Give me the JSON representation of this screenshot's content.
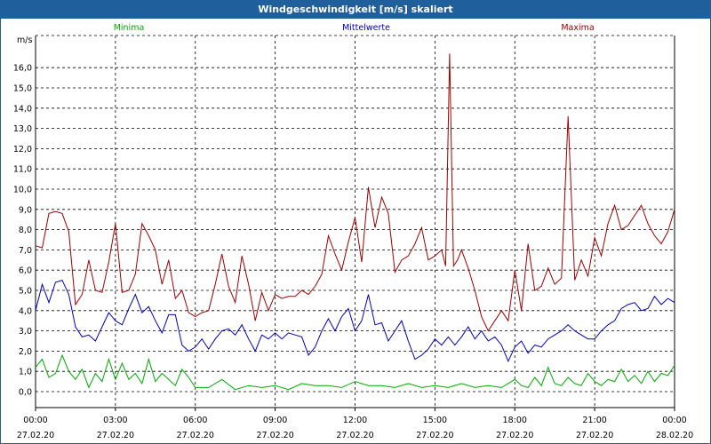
{
  "window": {
    "title": "Windgeschwindigkeit [m/s] skaliert"
  },
  "chart_data": {
    "type": "line",
    "title": "Windgeschwindigkeit [m/s] skaliert",
    "ylabel": "m/s",
    "xlabel": "",
    "ylim": [
      -0.8,
      17.3
    ],
    "y_ticks": [
      "0,0",
      "1,0",
      "2,0",
      "3,0",
      "4,0",
      "5,0",
      "6,0",
      "7,0",
      "8,0",
      "9,0",
      "10,0",
      "11,0",
      "12,0",
      "13,0",
      "14,0",
      "15,0",
      "16,0"
    ],
    "x_ticks": [
      {
        "time": "00:00",
        "date": "27.02.20"
      },
      {
        "time": "03:00",
        "date": "27.02.20"
      },
      {
        "time": "06:00",
        "date": "27.02.20"
      },
      {
        "time": "09:00",
        "date": "27.02.20"
      },
      {
        "time": "12:00",
        "date": "27.02.20"
      },
      {
        "time": "15:00",
        "date": "27.02.20"
      },
      {
        "time": "18:00",
        "date": "27.02.20"
      },
      {
        "time": "21:00",
        "date": "27.02.20"
      },
      {
        "time": "00:00",
        "date": "28.02.20"
      }
    ],
    "grid": true,
    "legend_position": "top",
    "x_unit": "hours",
    "series": [
      {
        "name": "Minima",
        "color": "#00aa00",
        "x": [
          0,
          0.25,
          0.5,
          0.75,
          1,
          1.25,
          1.5,
          1.75,
          2,
          2.25,
          2.5,
          2.75,
          3,
          3.25,
          3.5,
          3.75,
          4,
          4.25,
          4.5,
          4.75,
          5,
          5.25,
          5.5,
          5.75,
          6,
          6.5,
          7,
          7.5,
          8,
          8.5,
          9,
          9.5,
          10,
          10.5,
          11,
          11.5,
          12,
          12.5,
          13,
          13.5,
          14,
          14.5,
          15,
          15.5,
          16,
          16.5,
          17,
          17.5,
          18,
          18.25,
          18.5,
          18.75,
          19,
          19.25,
          19.5,
          19.75,
          20,
          20.25,
          20.5,
          20.75,
          21,
          21.25,
          21.5,
          21.75,
          22,
          22.25,
          22.5,
          22.75,
          23,
          23.25,
          23.5,
          23.75,
          24
        ],
        "values": [
          1.2,
          1.6,
          0.7,
          0.9,
          1.8,
          1.0,
          0.6,
          1.1,
          0.2,
          0.9,
          0.5,
          1.6,
          0.6,
          1.4,
          0.6,
          0.9,
          0.4,
          1.6,
          0.5,
          0.9,
          0.6,
          0.3,
          1.1,
          0.7,
          0.2,
          0.2,
          0.6,
          0.1,
          0.3,
          0.2,
          0.3,
          0.1,
          0.4,
          0.3,
          0.3,
          0.2,
          0.5,
          0.3,
          0.3,
          0.2,
          0.4,
          0.2,
          0.3,
          0.2,
          0.4,
          0.2,
          0.3,
          0.2,
          0.6,
          0.3,
          0.2,
          0.7,
          0.3,
          1.2,
          0.4,
          0.3,
          0.7,
          0.4,
          0.3,
          0.9,
          0.5,
          0.3,
          0.6,
          0.5,
          1.1,
          0.5,
          0.8,
          0.4,
          1.0,
          0.5,
          0.9,
          0.8,
          1.3
        ]
      },
      {
        "name": "Mittelwerte",
        "color": "#0000c0",
        "x": [
          0,
          0.25,
          0.5,
          0.75,
          1,
          1.25,
          1.5,
          1.75,
          2,
          2.25,
          2.5,
          2.75,
          3,
          3.25,
          3.5,
          3.75,
          4,
          4.25,
          4.5,
          4.75,
          5,
          5.25,
          5.5,
          5.75,
          6,
          6.25,
          6.5,
          6.75,
          7,
          7.25,
          7.5,
          7.75,
          8,
          8.25,
          8.5,
          8.75,
          9,
          9.25,
          9.5,
          9.75,
          10,
          10.25,
          10.5,
          10.75,
          11,
          11.25,
          11.5,
          11.75,
          12,
          12.25,
          12.5,
          12.75,
          13,
          13.25,
          13.5,
          13.75,
          14,
          14.25,
          14.5,
          14.75,
          15,
          15.25,
          15.5,
          15.75,
          16,
          16.25,
          16.5,
          16.75,
          17,
          17.25,
          17.5,
          17.75,
          18,
          18.25,
          18.5,
          18.75,
          19,
          19.25,
          19.5,
          19.75,
          20,
          20.25,
          20.5,
          20.75,
          21,
          21.25,
          21.5,
          21.75,
          22,
          22.25,
          22.5,
          22.75,
          23,
          23.25,
          23.5,
          23.75,
          24
        ],
        "values": [
          4.0,
          5.3,
          4.4,
          5.4,
          5.5,
          4.8,
          3.2,
          2.7,
          2.8,
          2.5,
          3.2,
          3.9,
          3.5,
          3.3,
          4.1,
          4.8,
          3.9,
          4.2,
          3.5,
          2.9,
          3.8,
          3.8,
          2.3,
          2.0,
          2.2,
          2.6,
          2.1,
          2.6,
          3.0,
          3.1,
          2.8,
          3.3,
          2.6,
          2.0,
          2.8,
          2.6,
          2.9,
          2.6,
          2.9,
          2.8,
          2.7,
          1.8,
          2.2,
          3.0,
          3.6,
          3.0,
          3.7,
          4.1,
          3.0,
          3.5,
          4.8,
          3.3,
          3.4,
          2.5,
          3.0,
          3.5,
          2.5,
          1.6,
          1.8,
          2.1,
          2.6,
          2.3,
          2.7,
          2.3,
          2.7,
          3.2,
          2.6,
          3.0,
          2.5,
          2.7,
          2.3,
          1.5,
          2.2,
          2.5,
          1.9,
          2.3,
          2.2,
          2.6,
          2.8,
          3.0,
          3.3,
          3.0,
          2.8,
          2.6,
          2.6,
          3.0,
          3.3,
          3.5,
          4.1,
          4.3,
          4.4,
          4.0,
          4.1,
          4.7,
          4.3,
          4.6,
          4.4
        ]
      },
      {
        "name": "Maxima",
        "color": "#a00000",
        "x": [
          0,
          0.25,
          0.5,
          0.75,
          1,
          1.25,
          1.5,
          1.75,
          2,
          2.25,
          2.5,
          2.75,
          3,
          3.25,
          3.5,
          3.75,
          4,
          4.25,
          4.5,
          4.75,
          5,
          5.25,
          5.5,
          5.75,
          6,
          6.25,
          6.5,
          6.75,
          7,
          7.25,
          7.5,
          7.75,
          8,
          8.25,
          8.5,
          8.75,
          9,
          9.25,
          9.5,
          9.75,
          10,
          10.25,
          10.5,
          10.75,
          11,
          11.25,
          11.5,
          11.75,
          12,
          12.25,
          12.5,
          12.75,
          13,
          13.25,
          13.5,
          13.75,
          14,
          14.25,
          14.5,
          14.75,
          15,
          15.25,
          15.4,
          15.55,
          15.7,
          15.85,
          16,
          16.25,
          16.5,
          16.75,
          17,
          17.25,
          17.5,
          17.75,
          18,
          18.25,
          18.5,
          18.75,
          19,
          19.25,
          19.5,
          19.75,
          20,
          20.25,
          20.5,
          20.75,
          21,
          21.25,
          21.5,
          21.75,
          22,
          22.25,
          22.5,
          22.75,
          23,
          23.25,
          23.5,
          23.75,
          24
        ],
        "values": [
          7.2,
          7.1,
          8.8,
          8.9,
          8.8,
          7.9,
          4.3,
          4.8,
          6.5,
          5.0,
          4.9,
          6.4,
          8.3,
          4.9,
          5.0,
          5.8,
          8.3,
          7.7,
          7.0,
          5.3,
          6.5,
          4.6,
          5.0,
          3.9,
          3.7,
          3.9,
          4.0,
          5.3,
          6.8,
          5.2,
          4.4,
          6.7,
          5.3,
          3.5,
          4.9,
          4.0,
          4.8,
          4.6,
          4.7,
          4.7,
          5.0,
          4.8,
          5.2,
          5.8,
          7.7,
          6.8,
          6.0,
          7.4,
          8.6,
          6.4,
          10.1,
          8.1,
          9.6,
          8.8,
          5.9,
          6.5,
          6.7,
          7.3,
          8.1,
          6.5,
          6.7,
          7.0,
          6.2,
          16.7,
          6.2,
          6.5,
          7.0,
          6.1,
          5.0,
          3.7,
          3.0,
          3.5,
          4.0,
          3.5,
          6.0,
          4.0,
          7.3,
          5.0,
          5.2,
          6.1,
          5.3,
          5.6,
          13.6,
          5.5,
          6.5,
          5.7,
          7.6,
          6.7,
          8.3,
          9.2,
          8.0,
          8.2,
          8.7,
          9.2,
          8.3,
          7.7,
          7.3,
          7.9,
          9.0
        ]
      }
    ]
  }
}
